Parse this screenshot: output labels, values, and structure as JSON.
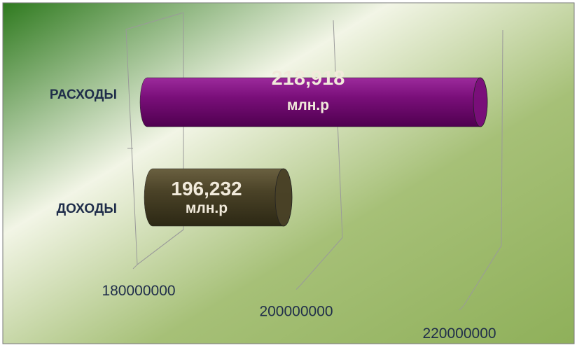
{
  "chart_data": {
    "type": "bar",
    "orientation": "horizontal",
    "style": "3d-cylinder",
    "categories": [
      "РАСХОДЫ",
      "ДОХОДЫ"
    ],
    "values": [
      218918000,
      196232000
    ],
    "data_labels": [
      {
        "value": "218,918",
        "unit": "млн.р"
      },
      {
        "value": "196,232",
        "unit": "млн.р"
      }
    ],
    "bar_colors": [
      "#7a0f7a",
      "#4a4227"
    ],
    "x_ticks": [
      "180000000",
      "200000000",
      "220000000"
    ],
    "x_range": [
      180000000,
      220000000
    ],
    "grid": true,
    "legend": "none"
  },
  "colors": {
    "background_start": "#2f7a1f",
    "background_mid": "#f2f5e6",
    "background_end": "#8fb05a",
    "category_text": "#1f2d4a",
    "axis_text": "#1f2d4a",
    "grid": "#9a9a9a",
    "frame": "#7a7a7a",
    "data_label_text": "#f1eadb"
  }
}
